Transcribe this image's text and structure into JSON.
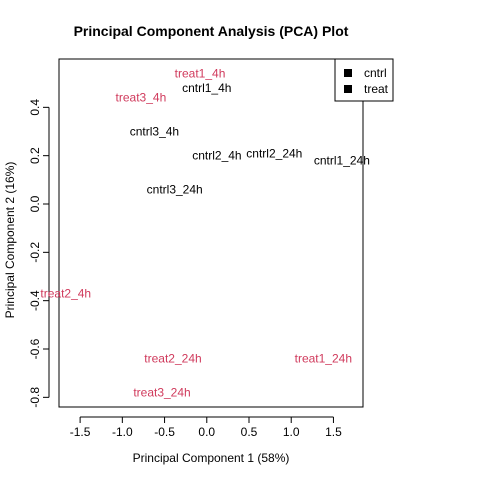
{
  "chart_data": {
    "type": "scatter",
    "title": "Principal Component Analysis (PCA) Plot",
    "xlabel": "Principal Component 1 (58%)",
    "ylabel": "Principal Component 2 (16%)",
    "xlim": [
      -1.75,
      1.85
    ],
    "ylim": [
      -0.84,
      0.6
    ],
    "xticks": [
      "-1.5",
      "-1.0",
      "-0.5",
      "0.0",
      "0.5",
      "1.0",
      "1.5"
    ],
    "yticks": [
      "-0.8",
      "-0.6",
      "-0.4",
      "-0.2",
      "0.0",
      "0.2",
      "0.4"
    ],
    "grid": false,
    "legend_position": "top-right",
    "legend": [
      {
        "label": "cntrl",
        "color": "#000000"
      },
      {
        "label": "treat",
        "color": "#000000"
      }
    ],
    "series": [
      {
        "name": "cntrl",
        "color": "#000000",
        "points": [
          {
            "label": "cntrl1_4h",
            "x": 0.0,
            "y": 0.48
          },
          {
            "label": "cntrl3_4h",
            "x": -0.62,
            "y": 0.3
          },
          {
            "label": "cntrl2_4h",
            "x": 0.12,
            "y": 0.2
          },
          {
            "label": "cntrl2_24h",
            "x": 0.8,
            "y": 0.21
          },
          {
            "label": "cntrl1_24h",
            "x": 1.6,
            "y": 0.18
          },
          {
            "label": "cntrl3_24h",
            "x": -0.38,
            "y": 0.06
          }
        ]
      },
      {
        "name": "treat",
        "color": "#d03a5c",
        "points": [
          {
            "label": "treat1_4h",
            "x": -0.08,
            "y": 0.54
          },
          {
            "label": "treat3_4h",
            "x": -0.78,
            "y": 0.44
          },
          {
            "label": "treat2_4h",
            "x": -1.67,
            "y": -0.37
          },
          {
            "label": "treat2_24h",
            "x": -0.4,
            "y": -0.64
          },
          {
            "label": "treat1_24h",
            "x": 1.38,
            "y": -0.64
          },
          {
            "label": "treat3_24h",
            "x": -0.53,
            "y": -0.78
          }
        ]
      }
    ]
  }
}
